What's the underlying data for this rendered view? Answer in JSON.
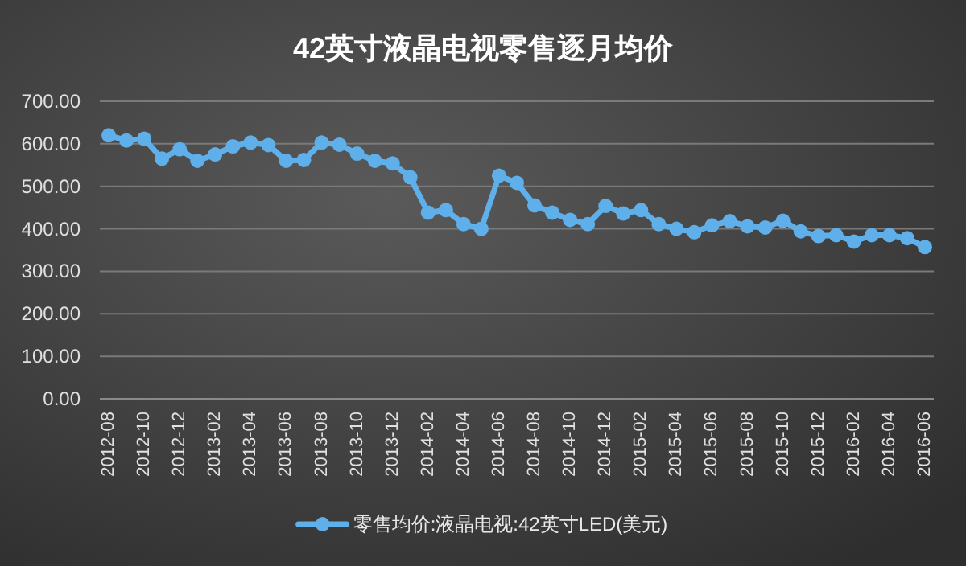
{
  "chart_data": {
    "type": "line",
    "title": "42英寸液晶电视零售逐月均价",
    "categories": [
      "2012-08",
      null,
      "2012-10",
      null,
      "2012-12",
      null,
      "2013-02",
      null,
      "2013-04",
      null,
      "2013-06",
      null,
      "2013-08",
      null,
      "2013-10",
      null,
      "2013-12",
      null,
      "2014-02",
      null,
      "2014-04",
      null,
      "2014-06",
      null,
      "2014-08",
      null,
      "2014-10",
      null,
      "2014-12",
      null,
      "2015-02",
      null,
      "2015-04",
      null,
      "2015-06",
      null,
      "2015-08",
      null,
      "2015-10",
      null,
      "2015-12",
      null,
      "2016-02",
      null,
      "2016-04",
      null,
      "2016-06"
    ],
    "series": [
      {
        "name": "零售均价:液晶电视:42英寸LED(美元)",
        "color": "#5fb0ea",
        "values": [
          620,
          608,
          612,
          565,
          587,
          560,
          575,
          594,
          603,
          597,
          560,
          562,
          603,
          598,
          577,
          560,
          554,
          521,
          438,
          444,
          411,
          400,
          525,
          508,
          455,
          438,
          421,
          411,
          454,
          436,
          444,
          411,
          400,
          392,
          408,
          418,
          406,
          403,
          419,
          394,
          383,
          385,
          370,
          385,
          385,
          378,
          357
        ]
      }
    ],
    "ylim": [
      0,
      700
    ],
    "yticks": [
      {
        "value": 0,
        "label": "0.00"
      },
      {
        "value": 100,
        "label": "100.00"
      },
      {
        "value": 200,
        "label": "200.00"
      },
      {
        "value": 300,
        "label": "300.00"
      },
      {
        "value": 400,
        "label": "400.00"
      },
      {
        "value": 500,
        "label": "500.00"
      },
      {
        "value": 600,
        "label": "600.00"
      },
      {
        "value": 700,
        "label": "700.00"
      }
    ],
    "grid": "y",
    "legend": "bottom",
    "marker": "circle",
    "line_style": "solid"
  }
}
